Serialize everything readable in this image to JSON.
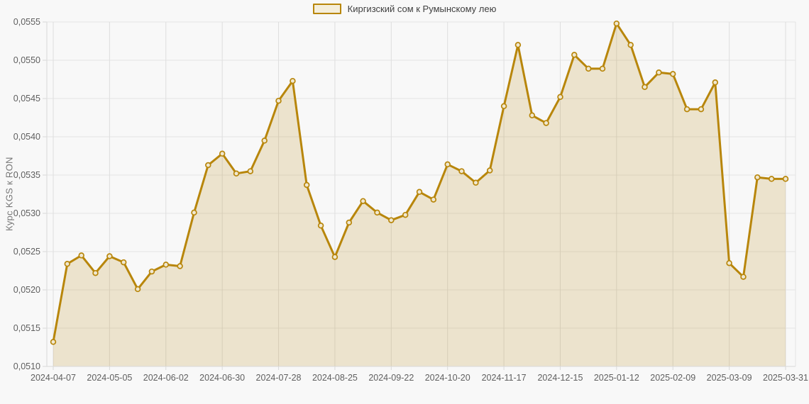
{
  "legend": {
    "label": "Киргизский сом к Румынскому лею"
  },
  "chart_data": {
    "type": "area",
    "title": "",
    "xlabel": "",
    "ylabel": "Курс KGS к RON",
    "ylim": [
      0.051,
      0.0555
    ],
    "grid": true,
    "legend_position": "top-center",
    "series": [
      {
        "name": "Киргизский сом к Румынскому лею",
        "values": [
          0.05132,
          0.05234,
          0.05245,
          0.05222,
          0.05244,
          0.05236,
          0.05201,
          0.05224,
          0.05233,
          0.05231,
          0.05301,
          0.05363,
          0.05378,
          0.05352,
          0.05355,
          0.05395,
          0.05447,
          0.05473,
          0.05337,
          0.05284,
          0.05243,
          0.05288,
          0.05316,
          0.05301,
          0.05291,
          0.05298,
          0.05328,
          0.05318,
          0.05364,
          0.05355,
          0.0534,
          0.05356,
          0.0544,
          0.0552,
          0.05428,
          0.05418,
          0.05452,
          0.05507,
          0.05489,
          0.05489,
          0.05548,
          0.0552,
          0.05465,
          0.05484,
          0.05482,
          0.05436,
          0.05436,
          0.05471,
          0.05235,
          0.05217,
          0.05347,
          0.05345,
          0.05345
        ]
      }
    ],
    "x_tick_labels": [
      "2024-04-07",
      "2024-05-05",
      "2024-06-02",
      "2024-06-30",
      "2024-07-28",
      "2024-08-25",
      "2024-09-22",
      "2024-10-20",
      "2024-11-17",
      "2024-12-15",
      "2025-01-12",
      "2025-02-09",
      "2025-03-09",
      "2025-03-31"
    ],
    "x_tick_indices": [
      0,
      4,
      8,
      12,
      16,
      20,
      24,
      28,
      32,
      36,
      40,
      44,
      48,
      52
    ],
    "y_ticks": {
      "values": [
        0.051,
        0.0515,
        0.052,
        0.0525,
        0.053,
        0.0535,
        0.054,
        0.0545,
        0.055,
        0.0555
      ],
      "labels": [
        "0,0510",
        "0,0515",
        "0,0520",
        "0,0525",
        "0,0530",
        "0,0535",
        "0,0540",
        "0,0545",
        "0,0550",
        "0,0555"
      ]
    },
    "colors": {
      "line": "#b8860b",
      "fill": "rgba(184,134,11,0.18)",
      "marker_fill": "#f0e8d0",
      "grid": "#e4e4e4",
      "grid_vertical": "#dedede",
      "axis_border": "#d9d9d9",
      "axis_text": "#5f5f5f",
      "background": "#f8f8f8"
    }
  }
}
